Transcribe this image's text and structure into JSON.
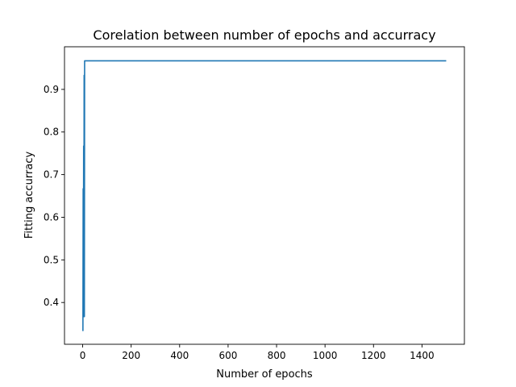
{
  "chart_data": {
    "type": "line",
    "title": "Corelation between number of epochs and accurracy",
    "xlabel": "Number of epochs",
    "ylabel": "Fitting accurracy",
    "xlim": [
      -75,
      1575
    ],
    "ylim": [
      0.302,
      1.0
    ],
    "xticks": [
      0,
      200,
      400,
      600,
      800,
      1000,
      1200,
      1400
    ],
    "xtick_labels": [
      "0",
      "200",
      "400",
      "600",
      "800",
      "1000",
      "1200",
      "1400"
    ],
    "yticks": [
      0.4,
      0.5,
      0.6,
      0.7,
      0.8,
      0.9
    ],
    "ytick_labels": [
      "0.4",
      "0.5",
      "0.6",
      "0.7",
      "0.8",
      "0.9"
    ],
    "grid": false,
    "legend": "none",
    "line_color": "#1f77b4",
    "series": [
      {
        "x": [
          1,
          2,
          3,
          4,
          5,
          6,
          7,
          8,
          9,
          10,
          1500
        ],
        "y": [
          0.333,
          0.667,
          0.367,
          0.767,
          0.367,
          0.933,
          0.367,
          0.967,
          0.967,
          0.967,
          0.967
        ]
      }
    ]
  }
}
